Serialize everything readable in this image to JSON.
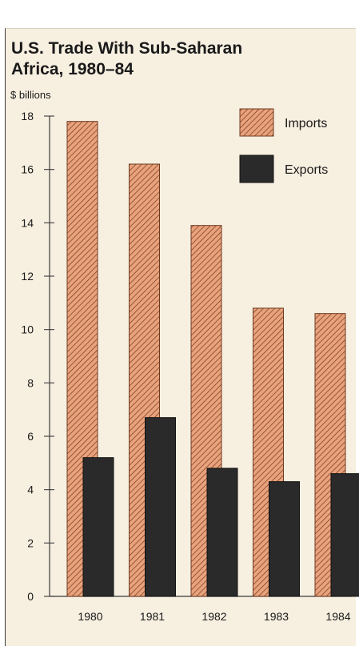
{
  "chart_data": {
    "type": "bar",
    "title": "U.S. Trade With Sub-Saharan Africa, 1980–84",
    "title_lines": [
      "U.S. Trade With Sub-Saharan",
      "Africa, 1980–84"
    ],
    "ylabel": "$ billions",
    "xlabel": "",
    "categories": [
      "1980",
      "1981",
      "1982",
      "1983",
      "1984"
    ],
    "ylim": [
      0,
      18
    ],
    "yticks": [
      0,
      2,
      4,
      6,
      8,
      10,
      12,
      14,
      16,
      18
    ],
    "legend_position": "top-right",
    "series": [
      {
        "name": "Imports",
        "values": [
          17.8,
          16.2,
          13.9,
          10.8,
          10.6
        ],
        "color": "#e9a27c",
        "pattern": "diagonal-hatch"
      },
      {
        "name": "Exports",
        "values": [
          5.2,
          6.7,
          4.8,
          4.3,
          4.6
        ],
        "color": "#2a2a2a",
        "pattern": "solid"
      }
    ]
  },
  "colors": {
    "background": "#f7efe0",
    "imports_fill": "#e9a27c",
    "imports_hatch": "#6e3a20",
    "exports_fill": "#2a2a2a",
    "axis": "#3a3a3a",
    "text": "#1a1a1a"
  }
}
